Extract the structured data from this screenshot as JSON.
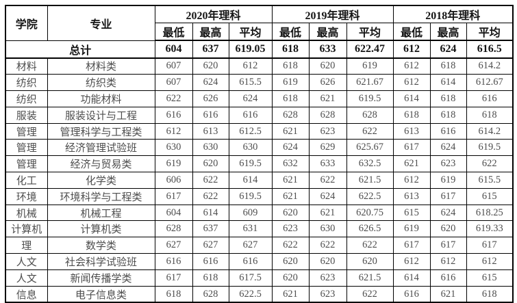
{
  "table": {
    "columns": {
      "college": "学院",
      "major": "专业"
    },
    "year_groups": [
      {
        "label": "2020年理科"
      },
      {
        "label": "2019年理科"
      },
      {
        "label": "2018年理科"
      }
    ],
    "sub_columns": [
      "最低",
      "最高",
      "平均"
    ],
    "total": {
      "label": "总计",
      "values": [
        "604",
        "637",
        "619.05",
        "618",
        "633",
        "622.47",
        "612",
        "624",
        "616.5"
      ]
    },
    "rows": [
      {
        "college": "材料",
        "major": "材料类",
        "values": [
          "607",
          "620",
          "612",
          "618",
          "620",
          "619",
          "612",
          "618",
          "614.2"
        ]
      },
      {
        "college": "纺织",
        "major": "纺织类",
        "values": [
          "607",
          "624",
          "615.5",
          "619",
          "626",
          "621.67",
          "612",
          "614",
          "612.67"
        ]
      },
      {
        "college": "纺织",
        "major": "功能材料",
        "values": [
          "622",
          "626",
          "624",
          "618",
          "621",
          "619.5",
          "614",
          "618",
          "616"
        ]
      },
      {
        "college": "服装",
        "major": "服装设计与工程",
        "values": [
          "616",
          "616",
          "616",
          "628",
          "628",
          "628",
          "618",
          "618",
          "618"
        ]
      },
      {
        "college": "管理",
        "major": "管理科学与工程类",
        "values": [
          "612",
          "613",
          "612.5",
          "621",
          "623",
          "622",
          "613",
          "616",
          "614.2"
        ]
      },
      {
        "college": "管理",
        "major": "经济管理试验班",
        "values": [
          "630",
          "630",
          "630",
          "624",
          "629",
          "625.67",
          "617",
          "624",
          "619.5"
        ]
      },
      {
        "college": "管理",
        "major": "经济与贸易类",
        "values": [
          "619",
          "620",
          "619.5",
          "632",
          "633",
          "632.5",
          "621",
          "623",
          "622"
        ]
      },
      {
        "college": "化工",
        "major": "化学类",
        "values": [
          "606",
          "622",
          "614",
          "621",
          "622",
          "621.5",
          "612",
          "619",
          "615.5"
        ]
      },
      {
        "college": "环境",
        "major": "环境科学与工程类",
        "values": [
          "617",
          "622",
          "619.5",
          "621",
          "624",
          "622.5",
          "613",
          "617",
          "615"
        ]
      },
      {
        "college": "机械",
        "major": "机械工程",
        "values": [
          "604",
          "614",
          "609",
          "620",
          "621",
          "620.75",
          "615",
          "624",
          "618.25"
        ]
      },
      {
        "college": "计算机",
        "major": "计算机类",
        "values": [
          "628",
          "637",
          "631",
          "623",
          "630",
          "626.5",
          "619",
          "620",
          "619.33"
        ]
      },
      {
        "college": "理",
        "major": "数学类",
        "values": [
          "627",
          "627",
          "627",
          "622",
          "622",
          "622",
          "617",
          "617",
          "617"
        ]
      },
      {
        "college": "人文",
        "major": "社会科学试验班",
        "values": [
          "616",
          "616",
          "616",
          "620",
          "620",
          "620",
          "612",
          "612",
          "612"
        ]
      },
      {
        "college": "人文",
        "major": "新闻传播学类",
        "values": [
          "617",
          "618",
          "617.5",
          "620",
          "623",
          "621.5",
          "614",
          "616",
          "615"
        ]
      },
      {
        "college": "信息",
        "major": "电子信息类",
        "values": [
          "618",
          "628",
          "622.5",
          "621",
          "623",
          "622",
          "616",
          "621",
          "618"
        ]
      }
    ],
    "colors": {
      "border": "#000000",
      "header_text": "#141414",
      "data_text": "#4d4d4d",
      "background": "#ffffff"
    }
  }
}
